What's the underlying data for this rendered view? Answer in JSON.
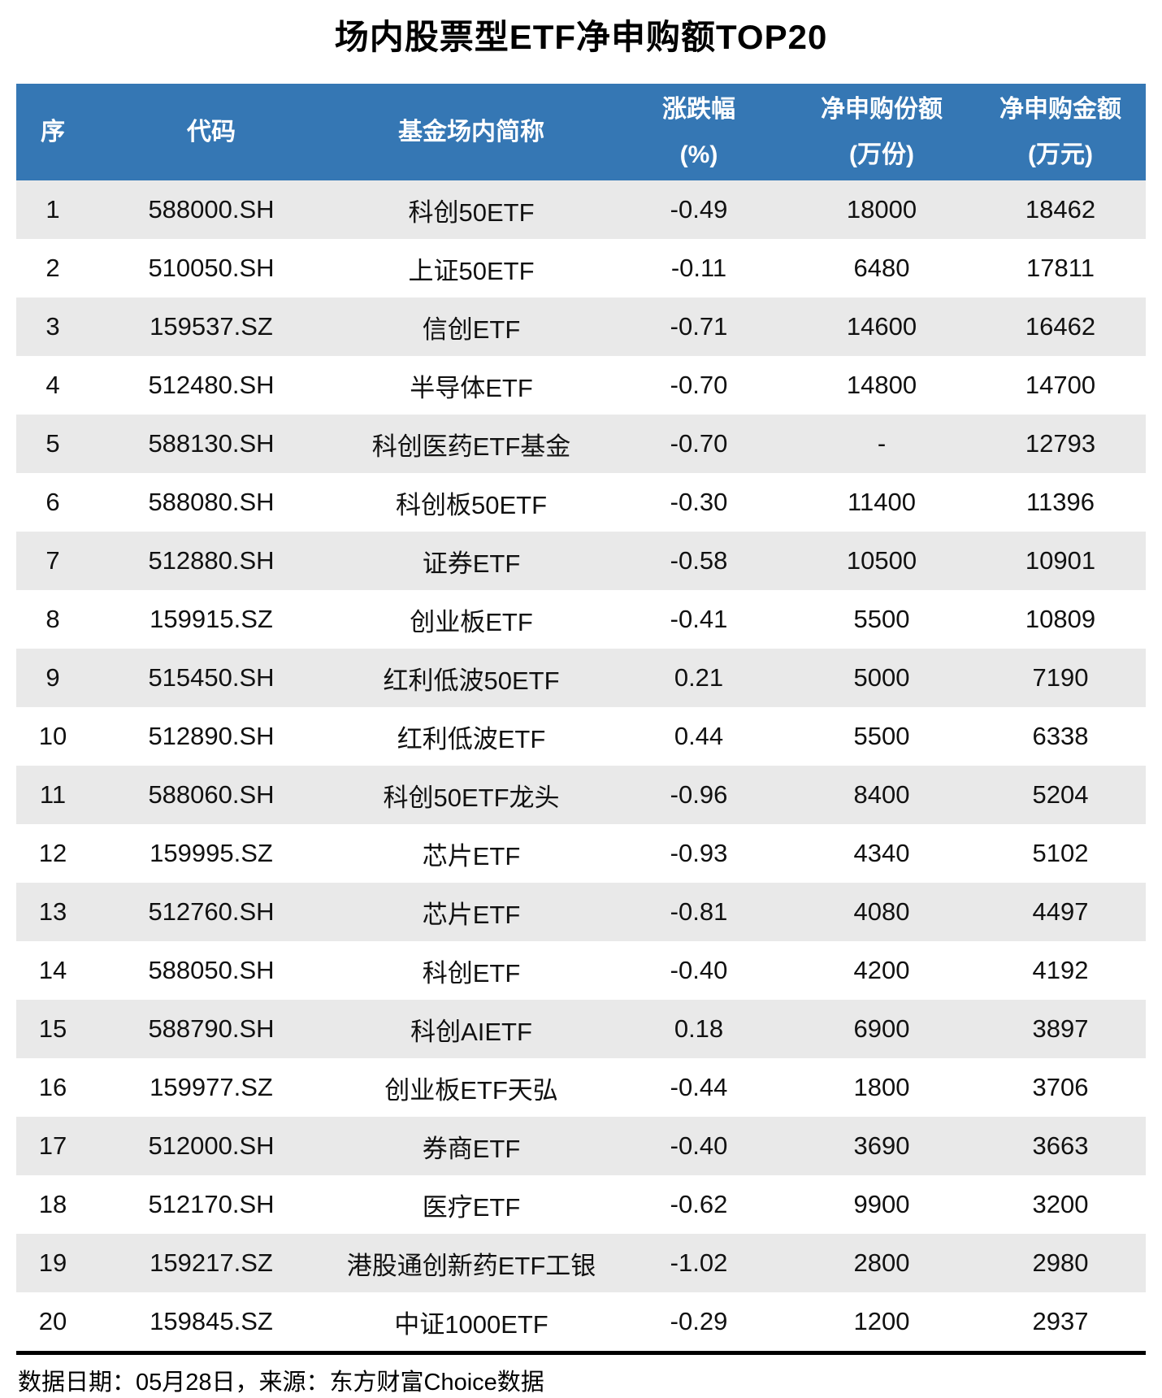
{
  "title": "场内股票型ETF净申购额TOP20",
  "chart_data": {
    "type": "table",
    "title": "场内股票型ETF净申购额TOP20",
    "columns": [
      "序",
      "代码",
      "基金场内简称",
      "涨跌幅(%)",
      "净申购份额(万份)",
      "净申购金额(万元)"
    ],
    "rows": [
      [
        "1",
        "588000.SH",
        "科创50ETF",
        "-0.49",
        "18000",
        "18462"
      ],
      [
        "2",
        "510050.SH",
        "上证50ETF",
        "-0.11",
        "6480",
        "17811"
      ],
      [
        "3",
        "159537.SZ",
        "信创ETF",
        "-0.71",
        "14600",
        "16462"
      ],
      [
        "4",
        "512480.SH",
        "半导体ETF",
        "-0.70",
        "14800",
        "14700"
      ],
      [
        "5",
        "588130.SH",
        "科创医药ETF基金",
        "-0.70",
        "-",
        "12793"
      ],
      [
        "6",
        "588080.SH",
        "科创板50ETF",
        "-0.30",
        "11400",
        "11396"
      ],
      [
        "7",
        "512880.SH",
        "证券ETF",
        "-0.58",
        "10500",
        "10901"
      ],
      [
        "8",
        "159915.SZ",
        "创业板ETF",
        "-0.41",
        "5500",
        "10809"
      ],
      [
        "9",
        "515450.SH",
        "红利低波50ETF",
        "0.21",
        "5000",
        "7190"
      ],
      [
        "10",
        "512890.SH",
        "红利低波ETF",
        "0.44",
        "5500",
        "6338"
      ],
      [
        "11",
        "588060.SH",
        "科创50ETF龙头",
        "-0.96",
        "8400",
        "5204"
      ],
      [
        "12",
        "159995.SZ",
        "芯片ETF",
        "-0.93",
        "4340",
        "5102"
      ],
      [
        "13",
        "512760.SH",
        "芯片ETF",
        "-0.81",
        "4080",
        "4497"
      ],
      [
        "14",
        "588050.SH",
        "科创ETF",
        "-0.40",
        "4200",
        "4192"
      ],
      [
        "15",
        "588790.SH",
        "科创AIETF",
        "0.18",
        "6900",
        "3897"
      ],
      [
        "16",
        "159977.SZ",
        "创业板ETF天弘",
        "-0.44",
        "1800",
        "3706"
      ],
      [
        "17",
        "512000.SH",
        "券商ETF",
        "-0.40",
        "3690",
        "3663"
      ],
      [
        "18",
        "512170.SH",
        "医疗ETF",
        "-0.62",
        "9900",
        "3200"
      ],
      [
        "19",
        "159217.SZ",
        "港股通创新药ETF工银",
        "-1.02",
        "2800",
        "2980"
      ],
      [
        "20",
        "159845.SZ",
        "中证1000ETF",
        "-0.29",
        "1200",
        "2937"
      ]
    ]
  },
  "header": {
    "column_lines": [
      [
        "序",
        ""
      ],
      [
        "代码",
        ""
      ],
      [
        "基金场内简称",
        ""
      ],
      [
        "涨跌幅",
        "(%)"
      ],
      [
        "净申购份额",
        "(万份)"
      ],
      [
        "净申购金额",
        "(万元)"
      ]
    ]
  },
  "footer": {
    "note": "数据日期：05月28日，来源：东方财富Choice数据"
  },
  "colors": {
    "header_bg": "#3577B4",
    "stripe_bg": "#E9E9E9",
    "divider": "#000000"
  }
}
